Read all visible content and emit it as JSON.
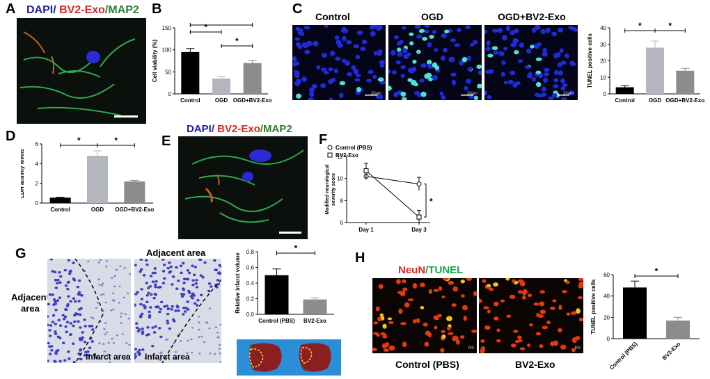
{
  "panels": {
    "A": {
      "letter": "A",
      "stain": {
        "a": "DAPI/",
        "b": " BV2-Exo",
        "c": "/MAP2"
      }
    },
    "B": {
      "letter": "B"
    },
    "C": {
      "letter": "C",
      "groups": [
        "Control",
        "OGD",
        "OGD+BV2-Exo"
      ],
      "scalebar": "20um"
    },
    "D": {
      "letter": "D"
    },
    "E": {
      "letter": "E",
      "stain": {
        "a": "DAPI/",
        "b": " BV2-Exo",
        "c": "/MAP2"
      }
    },
    "F": {
      "letter": "F"
    },
    "G": {
      "letter": "G",
      "adjacent_top": "Adjacent  area",
      "adjacent_left_1": "Adjacent",
      "adjacent_left_2": "area",
      "infarct": "Infarct area"
    },
    "H": {
      "letter": "H",
      "stain": {
        "a": "NeuN",
        "b": "/TUNEL"
      },
      "groups": [
        "Control (PBS)",
        "BV2-Exo"
      ],
      "scalebar": "RS"
    }
  },
  "colors": {
    "dapi": "#1f1f9e",
    "exo": "#d62828",
    "map2": "#2e7d32",
    "tunel": "#16a34a",
    "black": "#000000",
    "grey1": "#b3b6bd",
    "grey2": "#8c8c8c"
  },
  "chart_data": [
    {
      "id": "B",
      "type": "bar",
      "categories": [
        "Control",
        "OGD",
        "OGD+BV2-Exo"
      ],
      "values": [
        95,
        35,
        70
      ],
      "errors": [
        8,
        4,
        6
      ],
      "colors": [
        "#000000",
        "#b3b6bd",
        "#8c8c8c"
      ],
      "ylabel": "Cell viability (%)",
      "ylim": [
        0,
        150
      ],
      "yticks": [
        0,
        50,
        100,
        150
      ],
      "sig": [
        "*",
        "*",
        "*"
      ]
    },
    {
      "id": "C",
      "type": "bar",
      "categories": [
        "Control",
        "OGD",
        "OGD+BV2-Exo"
      ],
      "values": [
        4,
        28,
        14
      ],
      "errors": [
        1,
        4,
        1.5
      ],
      "colors": [
        "#000000",
        "#b3b6bd",
        "#8c8c8c"
      ],
      "ylabel": "TUNEL positive cells",
      "ylim": [
        0,
        40
      ],
      "yticks": [
        0,
        10,
        20,
        30,
        40
      ],
      "sig": [
        "*",
        "*"
      ]
    },
    {
      "id": "D",
      "type": "bar",
      "categories": [
        "Control",
        "OGD",
        "OGD+BV2-Exo"
      ],
      "values": [
        0.55,
        4.8,
        2.2
      ],
      "errors": [
        0.05,
        0.5,
        0.1
      ],
      "colors": [
        "#000000",
        "#b3b6bd",
        "#8c8c8c"
      ],
      "ylabel": "LDH activity levels",
      "ylim": [
        0,
        6
      ],
      "yticks": [
        0,
        2,
        4,
        6
      ],
      "sig": [
        "*",
        "*"
      ]
    },
    {
      "id": "F",
      "type": "line",
      "x": [
        "Day 1",
        "Day 3"
      ],
      "series": [
        {
          "name": "Control (PBS)",
          "values": [
            10.2,
            9.5
          ],
          "errors": [
            0.3,
            0.6
          ],
          "marker": "circle"
        },
        {
          "name": "BV2-Exo",
          "values": [
            10.7,
            6.5
          ],
          "errors": [
            0.7,
            0.6
          ],
          "marker": "square"
        }
      ],
      "ylabel": "Modified neurological severity score",
      "ylim": [
        6,
        12
      ],
      "yticks": [
        6,
        8,
        10,
        12
      ],
      "sig": [
        "*"
      ],
      "legend": "top-left"
    },
    {
      "id": "G",
      "type": "bar",
      "categories": [
        "Control (PBS)",
        "BV2-Exo"
      ],
      "values": [
        0.5,
        0.19
      ],
      "errors": [
        0.08,
        0.02
      ],
      "colors": [
        "#000000",
        "#8c8c8c"
      ],
      "ylabel": "Relative infarct volume",
      "ylim": [
        0,
        0.8
      ],
      "yticks": [
        0.0,
        0.2,
        0.4,
        0.6,
        0.8
      ],
      "ytick_labels": [
        "0.0",
        "0.2",
        "0.4",
        "0.6",
        "0.8"
      ],
      "sig": [
        "*"
      ]
    },
    {
      "id": "H",
      "type": "bar",
      "categories": [
        "Control (PBS)",
        "BV2-Exo"
      ],
      "values": [
        48,
        17
      ],
      "errors": [
        6,
        3
      ],
      "colors": [
        "#000000",
        "#8c8c8c"
      ],
      "ylabel": "TUNEL positive cells",
      "ylim": [
        0,
        60
      ],
      "yticks": [
        0,
        20,
        40,
        60
      ],
      "sig": [
        "*"
      ],
      "rotate_labels": true
    }
  ]
}
